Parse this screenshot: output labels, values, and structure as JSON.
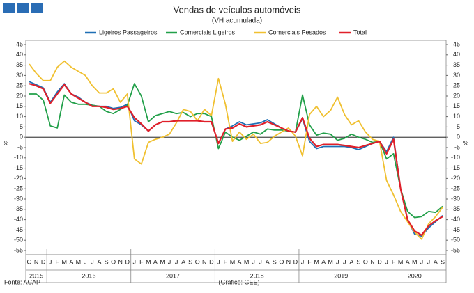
{
  "chart_data": {
    "type": "line",
    "title": "Vendas de veículos automóveis",
    "subtitle": "(VH acumulada)",
    "y_label": "%",
    "y2_label": "%",
    "source": "Fonte: ACAP",
    "credit": "(Gráfico: GEE)",
    "categories": [
      "O",
      "N",
      "D",
      "J",
      "F",
      "M",
      "A",
      "M",
      "J",
      "J",
      "A",
      "S",
      "O",
      "N",
      "D",
      "J",
      "F",
      "M",
      "A",
      "M",
      "J",
      "J",
      "A",
      "S",
      "O",
      "N",
      "D",
      "J",
      "F",
      "M",
      "A",
      "M",
      "J",
      "J",
      "A",
      "S",
      "O",
      "N",
      "D",
      "J",
      "F",
      "M",
      "A",
      "M",
      "J",
      "J",
      "A",
      "S",
      "O",
      "N",
      "D",
      "J",
      "F",
      "M",
      "A",
      "M",
      "J",
      "J",
      "A",
      "S"
    ],
    "years": [
      "2015",
      "2016",
      "2017",
      "2018",
      "2019",
      "2020"
    ],
    "ylim": [
      -55,
      45
    ],
    "yticks": [
      -55,
      -50,
      -45,
      -40,
      -35,
      -30,
      -25,
      -20,
      -15,
      -10,
      -5,
      0,
      5,
      10,
      15,
      20,
      25,
      30,
      35,
      40,
      45
    ],
    "y2lim": [
      -55,
      45
    ],
    "y2ticks": [
      -55,
      -50,
      -45,
      -40,
      -35,
      -30,
      -25,
      -20,
      -15,
      -10,
      -5,
      0,
      5,
      10,
      15,
      20,
      25,
      30,
      35,
      40,
      45
    ],
    "legend": "top",
    "series": [
      {
        "name": "Ligeiros Passageiros",
        "color": "#1f6fb5",
        "values": [
          27,
          25.5,
          24,
          17,
          22,
          26,
          21,
          19.5,
          17,
          15.5,
          15,
          15,
          14,
          14.5,
          16,
          8,
          6,
          3,
          6,
          7.5,
          7.5,
          8,
          8,
          8,
          8,
          7.5,
          7.5,
          -3,
          4,
          5.5,
          7.5,
          6,
          6.5,
          7,
          8.5,
          6.5,
          4.5,
          3,
          2.5,
          9,
          -2,
          -5.5,
          -4.5,
          -4.5,
          -4.5,
          -4.5,
          -5,
          -6,
          -4.5,
          -3,
          -2,
          -7,
          0,
          -25,
          -40,
          -47,
          -48,
          -44,
          -41,
          -38
        ]
      },
      {
        "name": "Comerciais Ligeiros",
        "color": "#22a04a",
        "values": [
          21,
          21,
          18,
          5.5,
          4.5,
          20.5,
          17,
          16,
          16,
          15.5,
          15,
          12.5,
          11.5,
          13.5,
          15.5,
          26,
          20,
          7.5,
          10.5,
          11.5,
          12.5,
          11.5,
          12,
          10,
          11.5,
          11.5,
          10,
          -5.5,
          2.5,
          0,
          -1.5,
          0.5,
          2.5,
          1.5,
          4,
          3.5,
          3.5,
          3,
          2.5,
          20.5,
          6,
          1,
          2,
          1.5,
          -1.5,
          -0.5,
          1.5,
          0,
          -1,
          -2.5,
          -2,
          -10.5,
          -8,
          -25,
          -36,
          -39,
          -38.5,
          -36,
          -36.5,
          -33.5
        ]
      },
      {
        "name": "Comerciais Pesados",
        "color": "#f0c030",
        "values": [
          35.5,
          31,
          27.5,
          27.5,
          34,
          37,
          34,
          32,
          30,
          25,
          21.5,
          21.5,
          23.5,
          17,
          21,
          -10.5,
          -13,
          -2.5,
          -1,
          0,
          1.5,
          7,
          13.5,
          12.5,
          8,
          13.5,
          10.5,
          28.5,
          16,
          -2,
          2.5,
          -1,
          1.5,
          -3,
          -2.5,
          0.5,
          2.5,
          4.5,
          0.5,
          -9,
          11,
          15,
          10,
          13,
          19.5,
          11,
          6,
          8,
          2.5,
          -1,
          -2,
          -21,
          -28,
          -36,
          -41,
          -46,
          -49.5,
          -42,
          -38.5,
          -34
        ]
      },
      {
        "name": "Total",
        "color": "#e0202a",
        "values": [
          26,
          25,
          23.5,
          16.5,
          21,
          25.5,
          21,
          19,
          17,
          15,
          15,
          14.5,
          13.5,
          14,
          15,
          9.5,
          6.5,
          3,
          6,
          7.5,
          7.5,
          8,
          8,
          8,
          8,
          7.5,
          7.5,
          -3,
          4,
          4.5,
          6.5,
          5,
          5.5,
          6,
          7.5,
          6,
          4.5,
          3,
          2.5,
          9.5,
          -0.5,
          -4.5,
          -3.5,
          -3.5,
          -3.5,
          -4,
          -4.5,
          -5,
          -4,
          -3,
          -2,
          -8,
          -1,
          -25,
          -40,
          -45.5,
          -47.5,
          -43,
          -40.5,
          -38.5
        ]
      }
    ]
  }
}
